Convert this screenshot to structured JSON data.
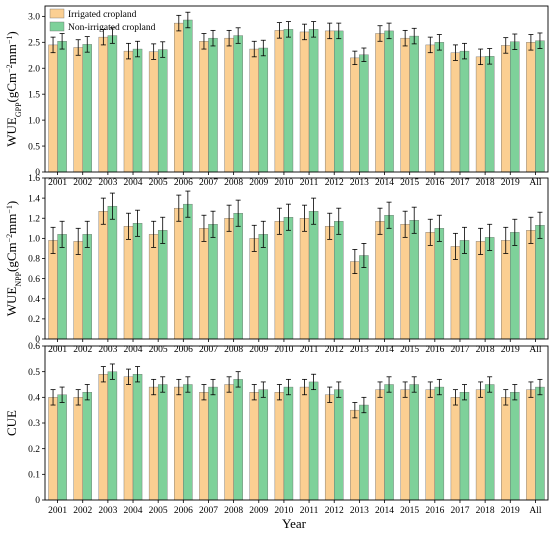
{
  "figure": {
    "xlabel": "Year",
    "legend": {
      "placement": "top-left",
      "entries": [
        {
          "label": "Irrigated cropland",
          "color": "#FBCF92"
        },
        {
          "label": "Non-irrigated cropland",
          "color": "#7ED19A"
        }
      ]
    }
  },
  "chart_data": [
    {
      "type": "bar",
      "title": "",
      "ylabel": "WUE_GPP(gCm^-2mm^-1)",
      "ylabel_main": "WUE",
      "ylabel_sub": "GPP",
      "ylabel_unit_prefix": "(gCm",
      "ylabel_sup1": "−2",
      "ylabel_mid": "mm",
      "ylabel_sup2": "−1",
      "ylabel_unit_suffix": ")",
      "ylim": [
        0,
        3.2
      ],
      "yticks": [
        "0",
        "0.5",
        "1.0",
        "1.5",
        "2.0",
        "2.5",
        "3.0"
      ],
      "ytick_values": [
        0,
        0.5,
        1.0,
        1.5,
        2.0,
        2.5,
        3.0
      ],
      "categories": [
        "2001",
        "2002",
        "2003",
        "2004",
        "2005",
        "2006",
        "2007",
        "2008",
        "2009",
        "2010",
        "2011",
        "2012",
        "2013",
        "2014",
        "2015",
        "2016",
        "2017",
        "2018",
        "2019",
        "All"
      ],
      "series": [
        {
          "name": "Irrigated cropland",
          "values": [
            2.45,
            2.4,
            2.6,
            2.33,
            2.32,
            2.87,
            2.52,
            2.58,
            2.37,
            2.73,
            2.7,
            2.72,
            2.2,
            2.67,
            2.58,
            2.45,
            2.3,
            2.22,
            2.44,
            2.5
          ],
          "errors": [
            0.15,
            0.15,
            0.15,
            0.15,
            0.15,
            0.15,
            0.15,
            0.15,
            0.15,
            0.15,
            0.15,
            0.15,
            0.13,
            0.15,
            0.15,
            0.15,
            0.15,
            0.15,
            0.15,
            0.15
          ]
        },
        {
          "name": "Non-irrigated cropland",
          "values": [
            2.52,
            2.46,
            2.63,
            2.37,
            2.36,
            2.93,
            2.58,
            2.63,
            2.39,
            2.75,
            2.75,
            2.72,
            2.26,
            2.72,
            2.62,
            2.5,
            2.33,
            2.23,
            2.51,
            2.53
          ],
          "errors": [
            0.15,
            0.15,
            0.15,
            0.15,
            0.15,
            0.15,
            0.15,
            0.15,
            0.15,
            0.15,
            0.15,
            0.15,
            0.13,
            0.15,
            0.15,
            0.15,
            0.15,
            0.15,
            0.15,
            0.15
          ]
        }
      ]
    },
    {
      "type": "bar",
      "title": "",
      "ylabel": "WUE_NPP(gCm^-2mm^-1)",
      "ylabel_main": "WUE",
      "ylabel_sub": "NPP",
      "ylabel_unit_prefix": "(gCm",
      "ylabel_sup1": "−2",
      "ylabel_mid": "mm",
      "ylabel_sup2": "−1",
      "ylabel_unit_suffix": ")",
      "ylim": [
        0,
        1.6
      ],
      "yticks": [
        "0",
        "0.2",
        "0.4",
        "0.6",
        "0.8",
        "1.0",
        "1.2",
        "1.4",
        "1.6"
      ],
      "ytick_values": [
        0,
        0.2,
        0.4,
        0.6,
        0.8,
        1.0,
        1.2,
        1.4,
        1.6
      ],
      "categories": [
        "2001",
        "2002",
        "2003",
        "2004",
        "2005",
        "2006",
        "2007",
        "2008",
        "2009",
        "2010",
        "2011",
        "2012",
        "2013",
        "2014",
        "2015",
        "2016",
        "2017",
        "2018",
        "2019",
        "All"
      ],
      "series": [
        {
          "name": "Irrigated cropland",
          "values": [
            0.98,
            0.97,
            1.27,
            1.12,
            1.04,
            1.3,
            1.1,
            1.2,
            1.0,
            1.17,
            1.2,
            1.12,
            0.77,
            1.17,
            1.14,
            1.06,
            0.92,
            0.97,
            0.98,
            1.08
          ],
          "errors": [
            0.13,
            0.13,
            0.13,
            0.13,
            0.13,
            0.13,
            0.13,
            0.13,
            0.13,
            0.13,
            0.13,
            0.13,
            0.12,
            0.13,
            0.13,
            0.13,
            0.13,
            0.13,
            0.13,
            0.13
          ]
        },
        {
          "name": "Non-irrigated cropland",
          "values": [
            1.04,
            1.04,
            1.32,
            1.15,
            1.08,
            1.34,
            1.14,
            1.25,
            1.04,
            1.21,
            1.27,
            1.17,
            0.83,
            1.23,
            1.18,
            1.1,
            0.98,
            1.01,
            1.06,
            1.13
          ],
          "errors": [
            0.13,
            0.13,
            0.13,
            0.13,
            0.13,
            0.13,
            0.13,
            0.13,
            0.13,
            0.13,
            0.13,
            0.13,
            0.12,
            0.13,
            0.13,
            0.13,
            0.13,
            0.13,
            0.13,
            0.13
          ]
        }
      ]
    },
    {
      "type": "bar",
      "title": "",
      "ylabel": "CUE",
      "ylabel_main": "CUE",
      "ylabel_sub": "",
      "ylabel_unit_prefix": "",
      "ylabel_sup1": "",
      "ylabel_mid": "",
      "ylabel_sup2": "",
      "ylabel_unit_suffix": "",
      "ylim": [
        0,
        0.6
      ],
      "yticks": [
        "0",
        "0.1",
        "0.2",
        "0.3",
        "0.4",
        "0.5",
        "0.6"
      ],
      "ytick_values": [
        0,
        0.1,
        0.2,
        0.3,
        0.4,
        0.5,
        0.6
      ],
      "categories": [
        "2001",
        "2002",
        "2003",
        "2004",
        "2005",
        "2006",
        "2007",
        "2008",
        "2009",
        "2010",
        "2011",
        "2012",
        "2013",
        "2014",
        "2015",
        "2016",
        "2017",
        "2018",
        "2019",
        "All"
      ],
      "series": [
        {
          "name": "Irrigated cropland",
          "values": [
            0.4,
            0.4,
            0.49,
            0.48,
            0.44,
            0.44,
            0.42,
            0.45,
            0.42,
            0.42,
            0.44,
            0.41,
            0.35,
            0.43,
            0.43,
            0.43,
            0.4,
            0.43,
            0.4,
            0.43
          ],
          "errors": [
            0.03,
            0.03,
            0.03,
            0.03,
            0.03,
            0.03,
            0.03,
            0.03,
            0.03,
            0.03,
            0.03,
            0.03,
            0.03,
            0.03,
            0.03,
            0.03,
            0.03,
            0.03,
            0.03,
            0.03
          ]
        },
        {
          "name": "Non-irrigated cropland",
          "values": [
            0.41,
            0.42,
            0.5,
            0.49,
            0.45,
            0.45,
            0.44,
            0.47,
            0.43,
            0.44,
            0.46,
            0.43,
            0.37,
            0.45,
            0.45,
            0.44,
            0.42,
            0.45,
            0.42,
            0.44
          ],
          "errors": [
            0.03,
            0.03,
            0.03,
            0.03,
            0.03,
            0.03,
            0.03,
            0.03,
            0.03,
            0.03,
            0.03,
            0.03,
            0.03,
            0.03,
            0.03,
            0.03,
            0.03,
            0.03,
            0.03,
            0.03
          ]
        }
      ]
    }
  ]
}
